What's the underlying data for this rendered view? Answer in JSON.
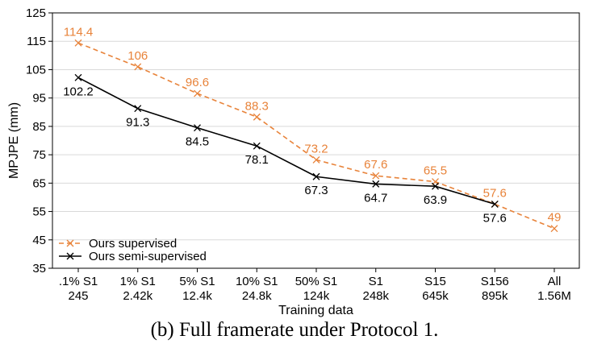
{
  "caption": "(b) Full framerate under Protocol 1.",
  "chart_data": {
    "type": "line",
    "title": "",
    "xlabel": "Training data",
    "ylabel": "MPJPE (mm)",
    "ylim": [
      35,
      125
    ],
    "yticks": [
      35,
      45,
      55,
      65,
      75,
      85,
      95,
      105,
      115,
      125
    ],
    "grid": true,
    "legend_position": "bottom-left",
    "categories": [
      [
        ".1% S1",
        "245"
      ],
      [
        "1% S1",
        "2.42k"
      ],
      [
        "5% S1",
        "12.4k"
      ],
      [
        "10% S1",
        "24.8k"
      ],
      [
        "50% S1",
        "124k"
      ],
      [
        "S1",
        "248k"
      ],
      [
        "S15",
        "645k"
      ],
      [
        "S156",
        "895k"
      ],
      [
        "All",
        "1.56M"
      ]
    ],
    "series": [
      {
        "name": "Ours supervised",
        "color": "#e8833a",
        "style": "dashed",
        "marker": "x",
        "values": [
          114.4,
          106,
          96.6,
          88.3,
          73.2,
          67.6,
          65.5,
          57.6,
          49
        ],
        "labels": [
          "114.4",
          "106",
          "96.6",
          "88.3",
          "73.2",
          "67.6",
          "65.5",
          "57.6",
          "49"
        ],
        "label_position": "above"
      },
      {
        "name": "Ours semi-supervised",
        "color": "#000000",
        "style": "solid",
        "marker": "x",
        "values": [
          102.2,
          91.3,
          84.5,
          78.1,
          67.3,
          64.7,
          63.9,
          57.6,
          null
        ],
        "labels": [
          "102.2",
          "91.3",
          "84.5",
          "78.1",
          "67.3",
          "64.7",
          "63.9",
          "57.6",
          null
        ],
        "label_position": "below"
      }
    ]
  }
}
